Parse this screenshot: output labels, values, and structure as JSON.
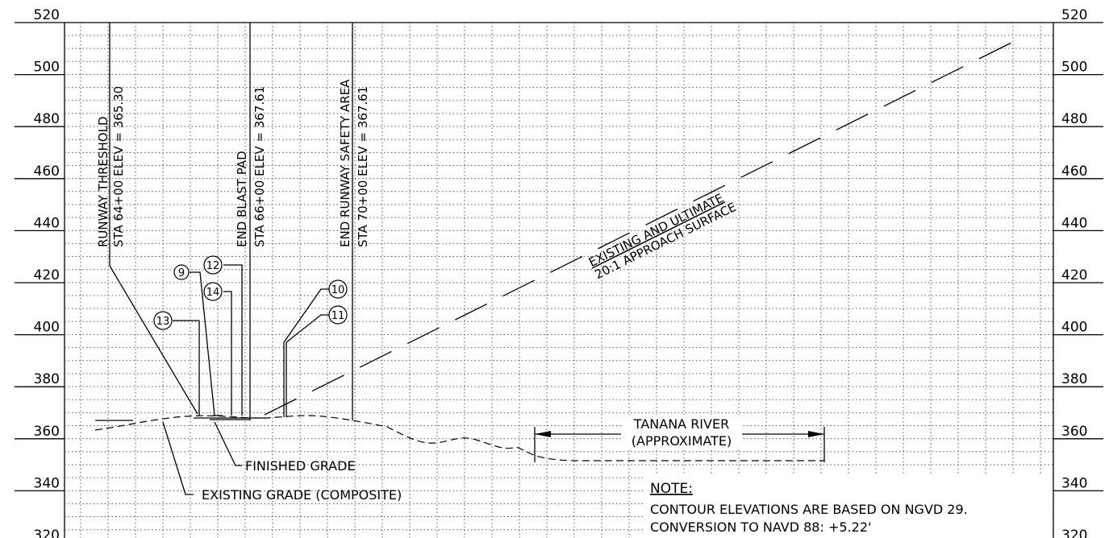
{
  "elevation_labels": [
    "520",
    "500",
    "480",
    "460",
    "440",
    "420",
    "400",
    "380",
    "360",
    "340",
    "320"
  ],
  "stations": {
    "threshold": {
      "line1": "RUNWAY THRESHOLD",
      "line2": "STA 64+00 ELEV = 365.30"
    },
    "blast_pad": {
      "line1": "END BLAST PAD",
      "line2": "STA 66+00 ELEV = 367.61"
    },
    "safety_area": {
      "line1": "END RUNWAY SAFETY AREA",
      "line2": "STA 70+00 ELEV = 367.61"
    }
  },
  "approach_surface": {
    "line1": "EXISTING AND ULTIMATE",
    "line2": "20:1 APPROACH SURFACE"
  },
  "callouts": [
    "9",
    "12",
    "14",
    "13",
    "10",
    "11"
  ],
  "river": {
    "line1": "TANANA RIVER",
    "line2": "(APPROXIMATE)"
  },
  "grade_labels": {
    "finished": "FINISHED GRADE",
    "existing": "EXISTING GRADE (COMPOSITE)"
  },
  "note": {
    "title": "NOTE:",
    "line1": "CONTOUR ELEVATIONS ARE BASED ON NGVD 29.",
    "line2": "CONVERSION TO NAVD 88: +5.22'"
  }
}
